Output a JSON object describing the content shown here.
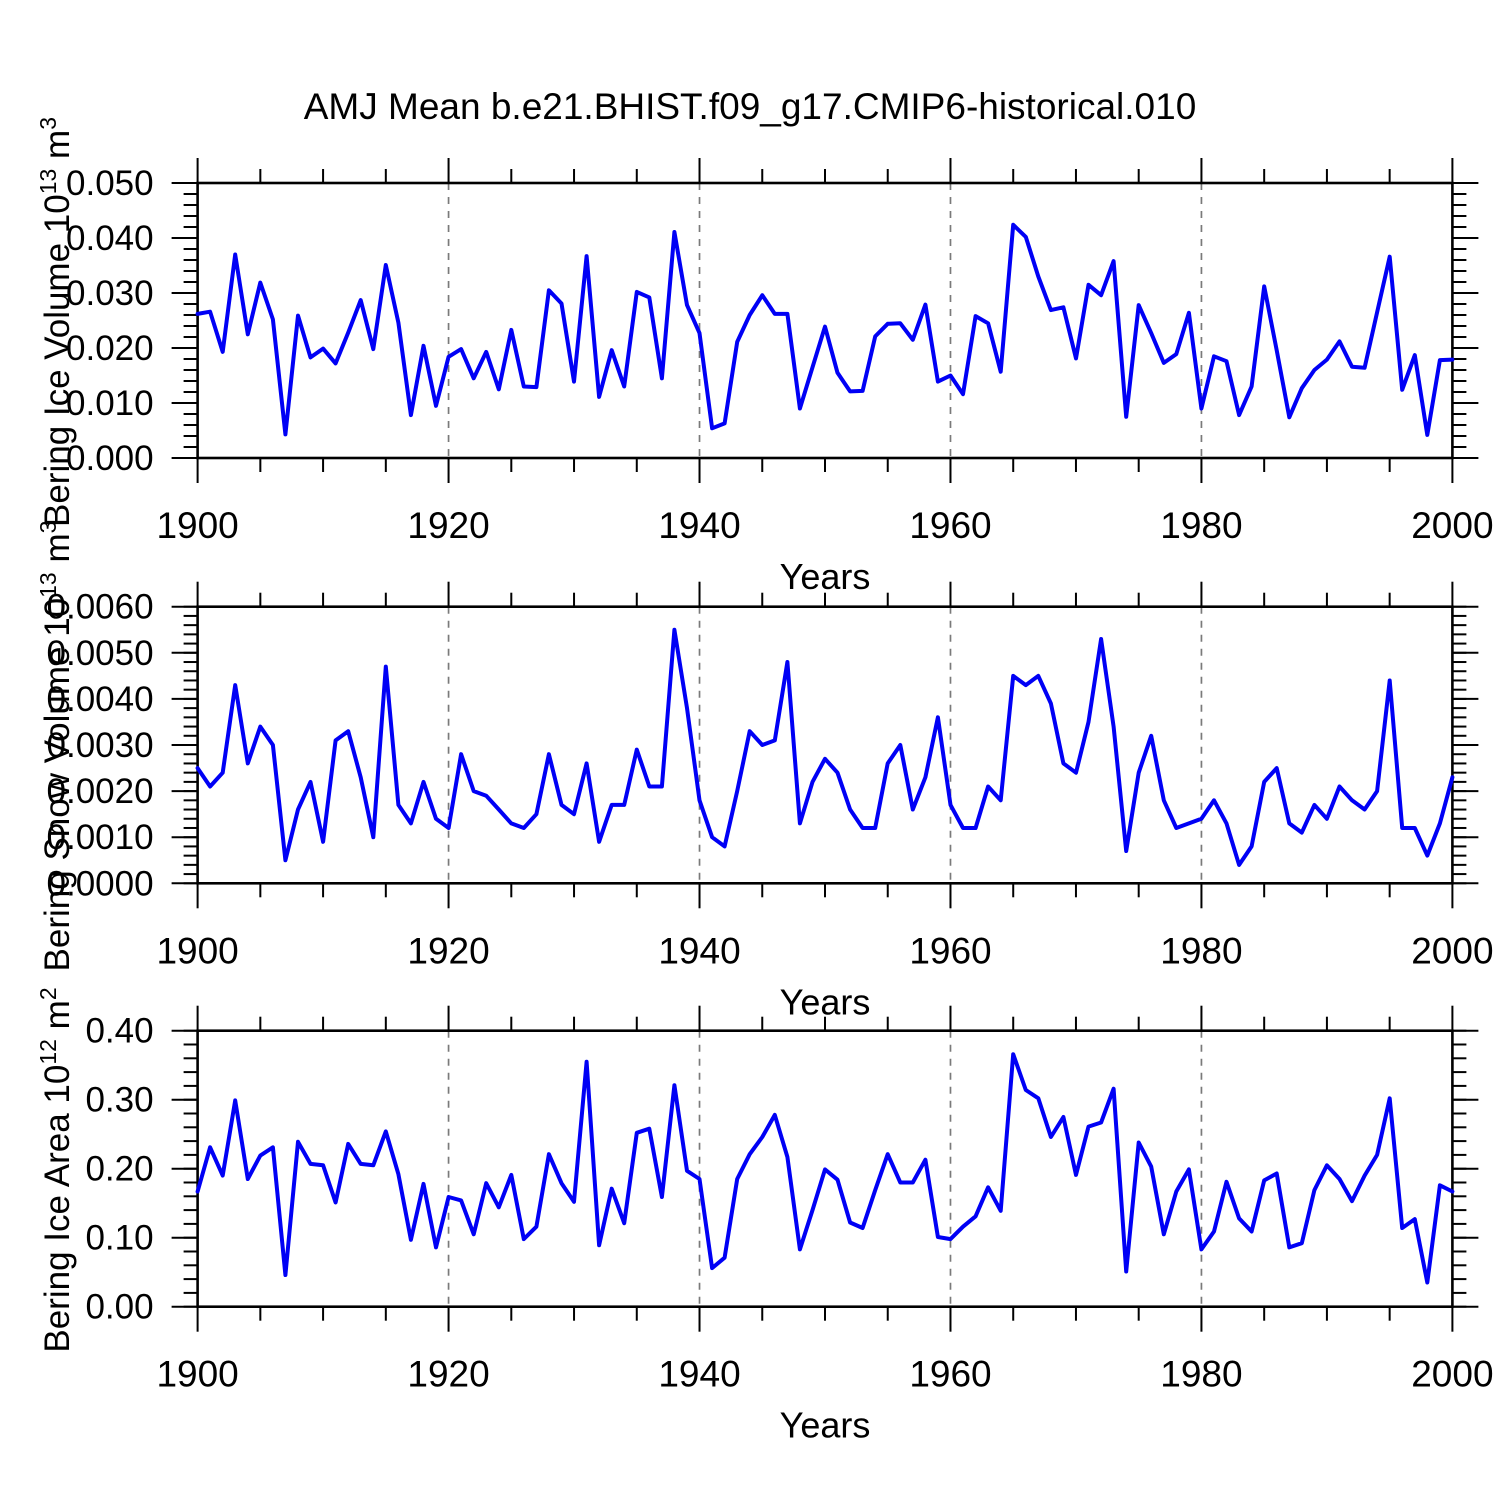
{
  "title": "AMJ Mean b.e21.BHIST.f09_g17.CMIP6-historical.010",
  "chart_data": {
    "type": "line",
    "x_start": 1900,
    "x_end": 2000,
    "x_step": 1,
    "x_major_ticks": [
      1900,
      1920,
      1940,
      1960,
      1980,
      2000
    ],
    "x_minor_step": 5,
    "gridline_years": [
      1920,
      1940,
      1960,
      1980
    ],
    "line_color": "#0000f5",
    "axis_color": "#000000",
    "gridline_color": "#7a7a7a",
    "panels": [
      {
        "name": "bering-ice-volume",
        "ylabel": {
          "main": "Bering Ice Volume 10",
          "exp": "13",
          "unit": " m",
          "unit_exp": "3"
        },
        "xlabel": "Years",
        "ylim": [
          0.0,
          0.05
        ],
        "y_tick_values": [
          0.0,
          0.01,
          0.02,
          0.03,
          0.04,
          0.05
        ],
        "y_tick_labels": [
          "0.000",
          "0.010",
          "0.020",
          "0.030",
          "0.040",
          "0.050"
        ],
        "y_minor_step": 0.002,
        "values": [
          0.0262,
          0.0266,
          0.0193,
          0.037,
          0.0225,
          0.0319,
          0.0252,
          0.0043,
          0.0259,
          0.0183,
          0.0199,
          0.0172,
          0.0228,
          0.0287,
          0.0198,
          0.0351,
          0.0246,
          0.0078,
          0.0204,
          0.0095,
          0.0184,
          0.0198,
          0.0145,
          0.0193,
          0.0125,
          0.0233,
          0.013,
          0.0129,
          0.0305,
          0.0281,
          0.0139,
          0.0367,
          0.0111,
          0.0196,
          0.013,
          0.0302,
          0.0292,
          0.0145,
          0.0411,
          0.0278,
          0.0227,
          0.0054,
          0.0063,
          0.0211,
          0.026,
          0.0296,
          0.0262,
          0.0262,
          0.009,
          0.0165,
          0.0239,
          0.0155,
          0.0121,
          0.0122,
          0.0221,
          0.0244,
          0.0245,
          0.0215,
          0.0279,
          0.0139,
          0.015,
          0.0116,
          0.0258,
          0.0245,
          0.0157,
          0.0424,
          0.0402,
          0.033,
          0.0269,
          0.0274,
          0.0181,
          0.0315,
          0.0296,
          0.0358,
          0.0075,
          0.0278,
          0.0227,
          0.0173,
          0.0189,
          0.0264,
          0.009,
          0.0185,
          0.0176,
          0.0078,
          0.013,
          0.0312,
          0.0196,
          0.0074,
          0.0127,
          0.016,
          0.0179,
          0.0212,
          0.0166,
          0.0164,
          0.0265,
          0.0366,
          0.0124,
          0.0187,
          0.0042,
          0.0178,
          0.0179
        ]
      },
      {
        "name": "bering-snow-volume",
        "ylabel": {
          "main": "Bering Snow Volume 10",
          "exp": "13",
          "unit": " m",
          "unit_exp": "3"
        },
        "xlabel": "Years",
        "ylim": [
          0.0,
          0.006
        ],
        "y_tick_values": [
          0.0,
          0.001,
          0.002,
          0.003,
          0.004,
          0.005,
          0.006
        ],
        "y_tick_labels": [
          "0.0000",
          "0.0010",
          "0.0020",
          "0.0030",
          "0.0040",
          "0.0050",
          "0.0060"
        ],
        "y_minor_step": 0.0002,
        "values": [
          0.0025,
          0.0021,
          0.0024,
          0.0043,
          0.0026,
          0.0034,
          0.003,
          0.0005,
          0.0016,
          0.0022,
          0.0009,
          0.0031,
          0.0033,
          0.0023,
          0.001,
          0.0047,
          0.0017,
          0.0013,
          0.0022,
          0.0014,
          0.0012,
          0.0028,
          0.002,
          0.0019,
          0.0016,
          0.0013,
          0.0012,
          0.0015,
          0.0028,
          0.0017,
          0.0015,
          0.0026,
          0.0009,
          0.0017,
          0.0017,
          0.0029,
          0.0021,
          0.0021,
          0.0055,
          0.0038,
          0.0018,
          0.001,
          0.0008,
          0.002,
          0.0033,
          0.003,
          0.0031,
          0.0048,
          0.0013,
          0.0022,
          0.0027,
          0.0024,
          0.0016,
          0.0012,
          0.0012,
          0.0026,
          0.003,
          0.0016,
          0.0023,
          0.0036,
          0.0017,
          0.0012,
          0.0012,
          0.0021,
          0.0018,
          0.0045,
          0.0043,
          0.0045,
          0.0039,
          0.0026,
          0.0024,
          0.0035,
          0.0053,
          0.0034,
          0.0007,
          0.0024,
          0.0032,
          0.0018,
          0.0012,
          0.0013,
          0.0014,
          0.0018,
          0.0013,
          0.0004,
          0.0008,
          0.0022,
          0.0025,
          0.0013,
          0.0011,
          0.0017,
          0.0014,
          0.0021,
          0.0018,
          0.0016,
          0.002,
          0.0044,
          0.0012,
          0.0012,
          0.0006,
          0.0013,
          0.0023
        ]
      },
      {
        "name": "bering-ice-area",
        "ylabel": {
          "main": "Bering Ice Area 10",
          "exp": "12",
          "unit": " m",
          "unit_exp": "2"
        },
        "xlabel": "Years",
        "ylim": [
          0.0,
          0.4
        ],
        "y_tick_values": [
          0.0,
          0.1,
          0.2,
          0.3,
          0.4
        ],
        "y_tick_labels": [
          "0.00",
          "0.10",
          "0.20",
          "0.30",
          "0.40"
        ],
        "y_minor_step": 0.02,
        "values": [
          0.167,
          0.231,
          0.19,
          0.299,
          0.185,
          0.219,
          0.231,
          0.046,
          0.239,
          0.207,
          0.205,
          0.151,
          0.236,
          0.207,
          0.205,
          0.254,
          0.192,
          0.097,
          0.178,
          0.086,
          0.159,
          0.154,
          0.105,
          0.179,
          0.144,
          0.191,
          0.098,
          0.116,
          0.221,
          0.179,
          0.152,
          0.355,
          0.089,
          0.171,
          0.121,
          0.252,
          0.258,
          0.159,
          0.321,
          0.197,
          0.185,
          0.056,
          0.071,
          0.185,
          0.221,
          0.246,
          0.278,
          0.217,
          0.083,
          0.14,
          0.199,
          0.184,
          0.122,
          0.114,
          0.169,
          0.221,
          0.18,
          0.18,
          0.213,
          0.101,
          0.098,
          0.116,
          0.131,
          0.173,
          0.139,
          0.366,
          0.314,
          0.302,
          0.246,
          0.275,
          0.191,
          0.261,
          0.267,
          0.316,
          0.051,
          0.238,
          0.203,
          0.105,
          0.167,
          0.199,
          0.083,
          0.109,
          0.181,
          0.128,
          0.109,
          0.183,
          0.193,
          0.086,
          0.092,
          0.169,
          0.205,
          0.185,
          0.153,
          0.19,
          0.22,
          0.302,
          0.114,
          0.127,
          0.035,
          0.176,
          0.167
        ]
      }
    ]
  }
}
